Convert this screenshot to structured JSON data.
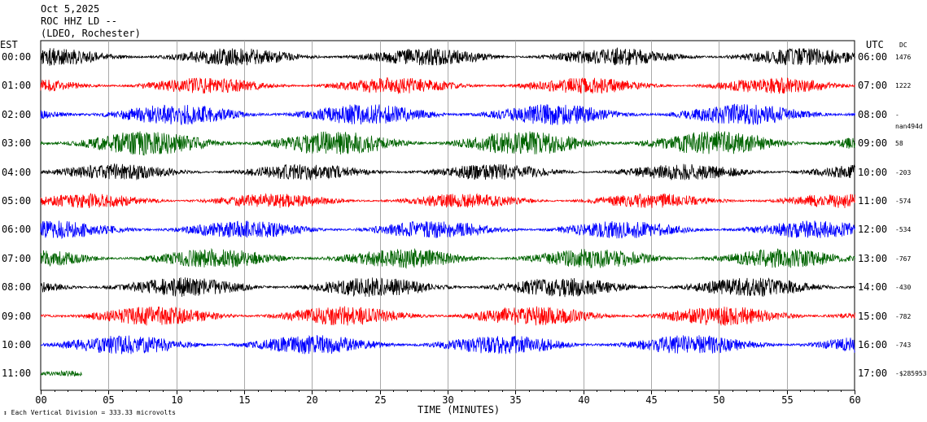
{
  "header": {
    "date": "Oct 5,2025",
    "station": "ROC HHZ LD --",
    "location": "(LDEO, Rochester)"
  },
  "left_axis_label": "EST",
  "right_axis_label": "UTC",
  "dc_label": "DC",
  "footer": {
    "scale": "Each Vertical Division =  333.33 microvolts",
    "xlabel": "TIME (MINUTES)"
  },
  "chart_data": {
    "type": "line",
    "title": "",
    "xlabel": "TIME (MINUTES)",
    "x_range": [
      0,
      60
    ],
    "x_ticks": [
      "00",
      "05",
      "10",
      "15",
      "20",
      "25",
      "30",
      "35",
      "40",
      "45",
      "50",
      "55",
      "60"
    ],
    "vertical_grid": true,
    "trace_colors": [
      "#000000",
      "#ff0000",
      "#0000ff",
      "#006400"
    ],
    "rows": [
      {
        "est": "00:00",
        "utc": "06:00",
        "dc": "1476"
      },
      {
        "est": "01:00",
        "utc": "07:00",
        "dc": "1222"
      },
      {
        "est": "02:00",
        "utc": "08:00",
        "dc": "-nan494d"
      },
      {
        "est": "03:00",
        "utc": "09:00",
        "dc": "58"
      },
      {
        "est": "04:00",
        "utc": "10:00",
        "dc": "-203"
      },
      {
        "est": "05:00",
        "utc": "11:00",
        "dc": "-574"
      },
      {
        "est": "06:00",
        "utc": "12:00",
        "dc": "-534"
      },
      {
        "est": "07:00",
        "utc": "13:00",
        "dc": "-767"
      },
      {
        "est": "08:00",
        "utc": "14:00",
        "dc": "-430"
      },
      {
        "est": "09:00",
        "utc": "15:00",
        "dc": "-782"
      },
      {
        "est": "10:00",
        "utc": "16:00",
        "dc": "-743"
      },
      {
        "est": "11:00",
        "utc": "17:00",
        "dc": "-$285953"
      }
    ],
    "last_row_end_minute": 3
  }
}
